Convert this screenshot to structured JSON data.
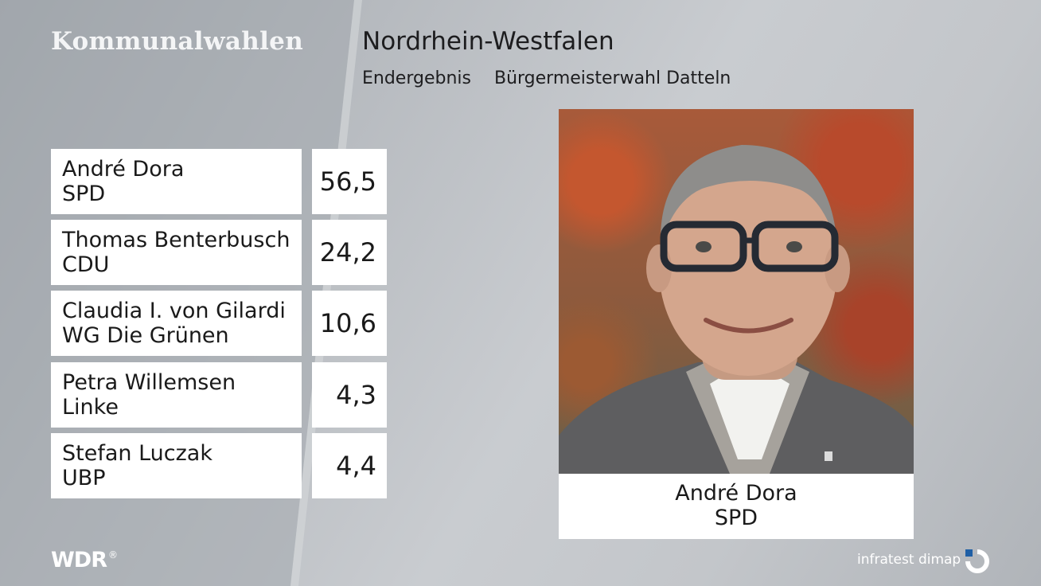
{
  "header": {
    "brand": "Kommunalwahlen",
    "region": "Nordrhein-Westfalen",
    "result_type": "Endergebnis",
    "election": "Bürgermeisterwahl Datteln"
  },
  "results": [
    {
      "name": "André Dora",
      "party": "SPD",
      "value": "56,5"
    },
    {
      "name": "Thomas Benterbusch",
      "party": "CDU",
      "value": "24,2"
    },
    {
      "name": "Claudia I. von Gilardi",
      "party": "WG Die Grünen",
      "value": "10,6"
    },
    {
      "name": "Petra Willemsen",
      "party": "Linke",
      "value": "4,3"
    },
    {
      "name": "Stefan Luczak",
      "party": "UBP",
      "value": "4,4"
    }
  ],
  "winner": {
    "name": "André Dora",
    "party": "SPD"
  },
  "footer": {
    "broadcaster_logo": "WDR",
    "broadcaster_mark": "®",
    "pollster": "infratest dimap"
  },
  "colors": {
    "accent": "#1f5fa5",
    "box": "#ffffff",
    "text": "#1a1a1a"
  }
}
